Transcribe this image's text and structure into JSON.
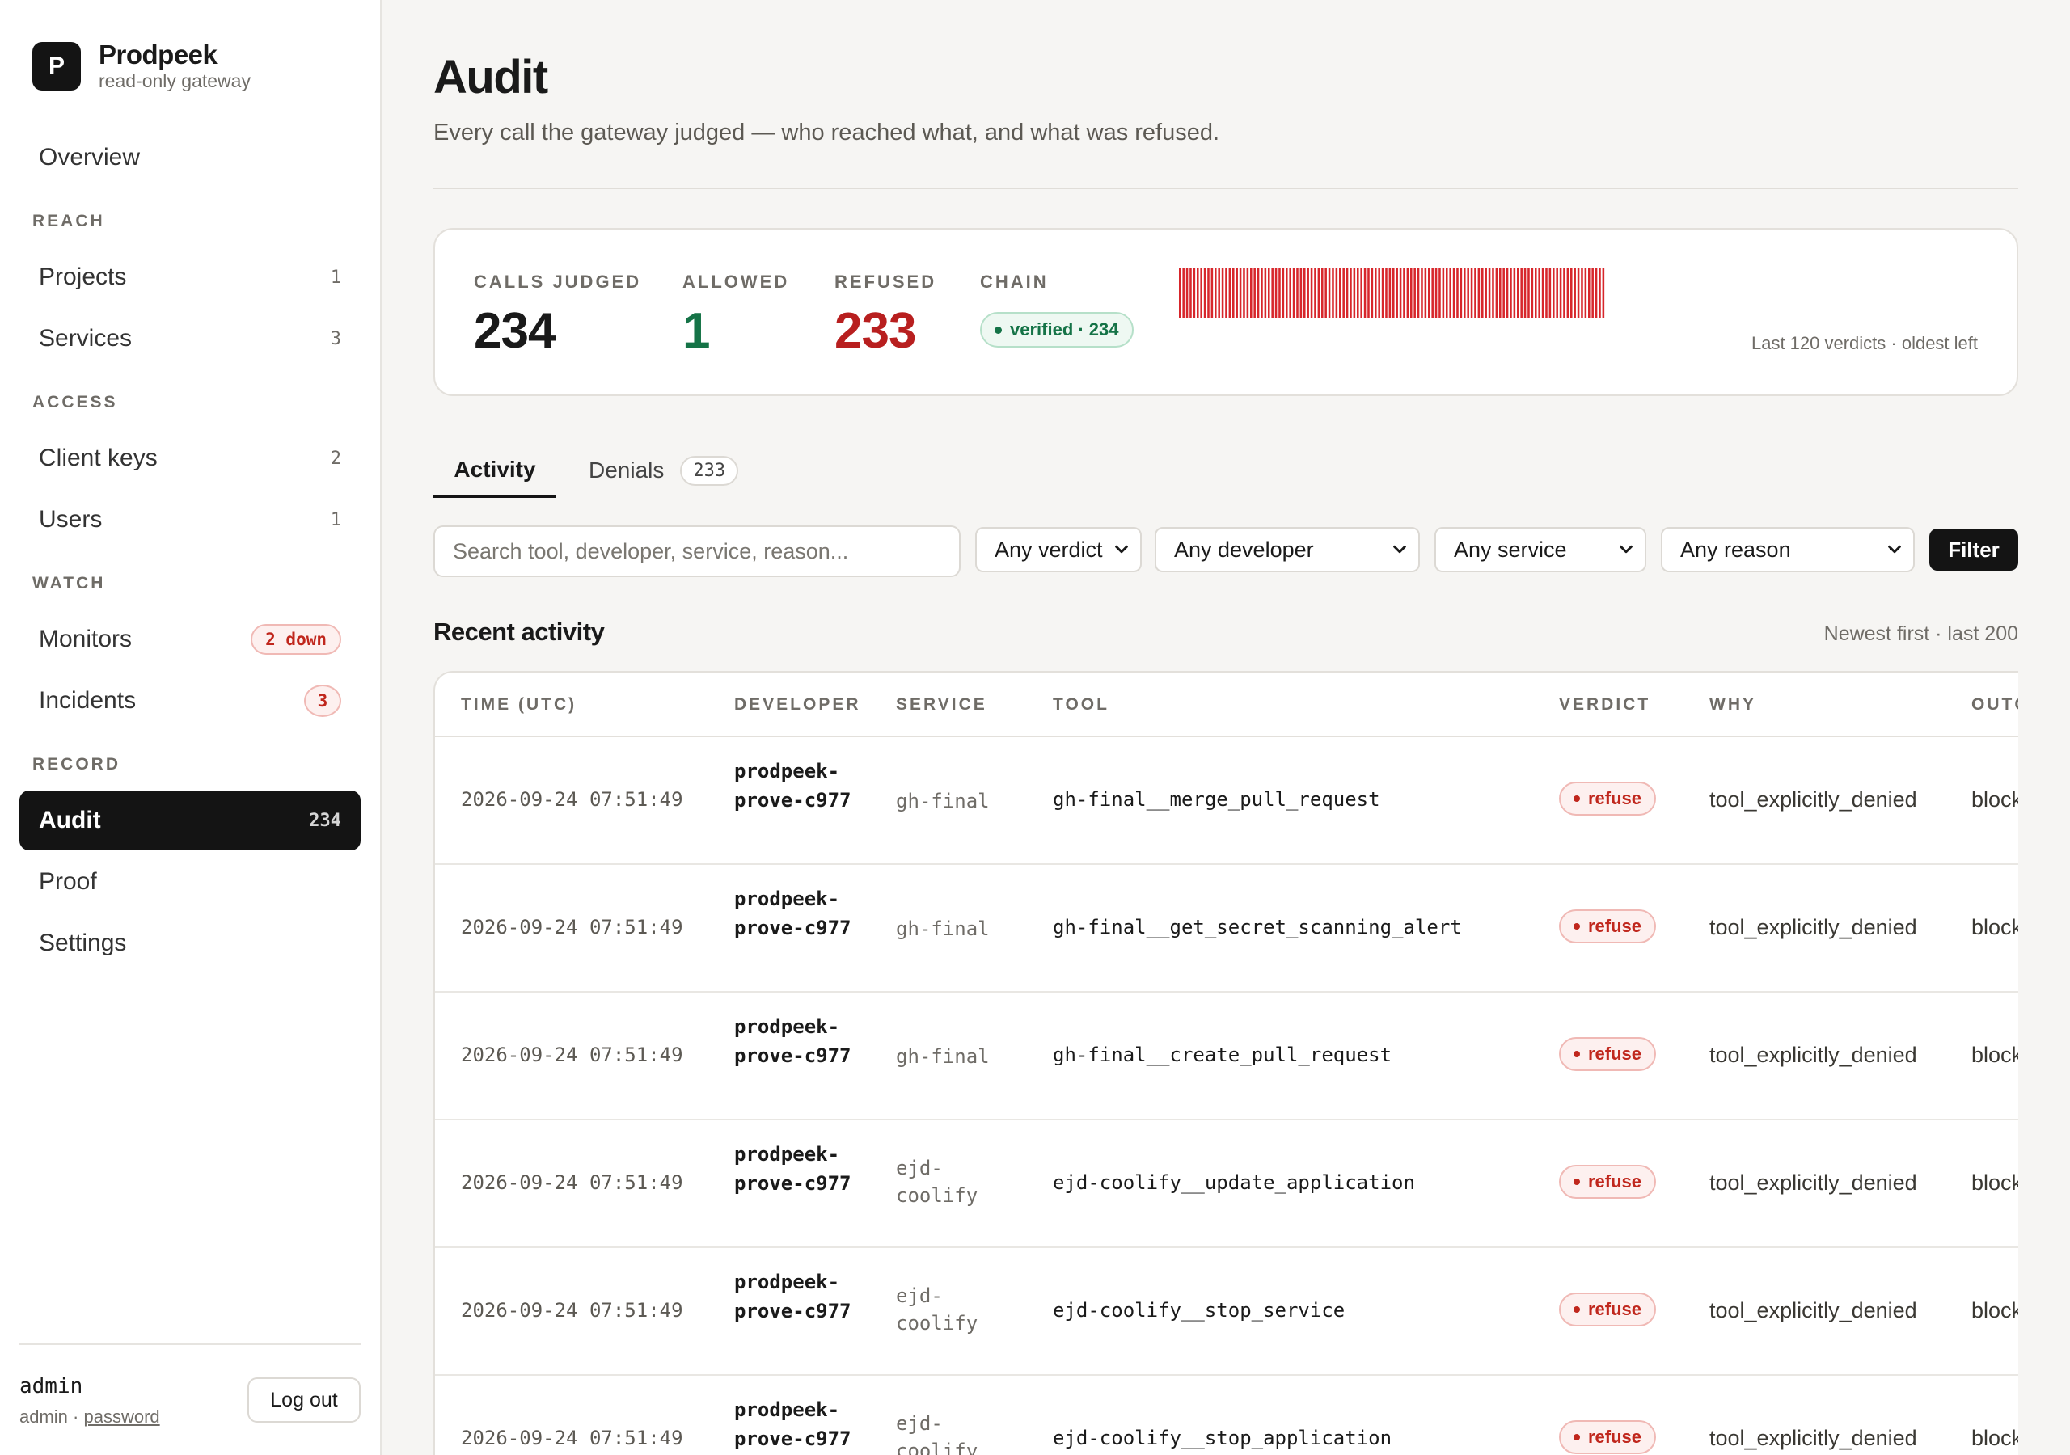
{
  "brand": {
    "logo_letter": "P",
    "name": "Prodpeek",
    "subtitle": "read-only gateway"
  },
  "sidebar": {
    "overview": "Overview",
    "sections": {
      "reach": "REACH",
      "access": "ACCESS",
      "watch": "WATCH",
      "record": "RECORD"
    },
    "items": {
      "projects": {
        "label": "Projects",
        "count": "1"
      },
      "services": {
        "label": "Services",
        "count": "3"
      },
      "client_keys": {
        "label": "Client keys",
        "count": "2"
      },
      "users": {
        "label": "Users",
        "count": "1"
      },
      "monitors": {
        "label": "Monitors",
        "badge": "2 down"
      },
      "incidents": {
        "label": "Incidents",
        "badge": "3"
      },
      "audit": {
        "label": "Audit",
        "count": "234"
      },
      "proof": {
        "label": "Proof"
      },
      "settings": {
        "label": "Settings"
      }
    },
    "user": {
      "name": "admin",
      "role": "admin",
      "separator": " · ",
      "password_link": "password",
      "logout": "Log out"
    }
  },
  "page": {
    "title": "Audit",
    "subtitle": "Every call the gateway judged — who reached what, and what was refused."
  },
  "stats": {
    "calls_label": "CALLS JUDGED",
    "calls_value": "234",
    "allowed_label": "ALLOWED",
    "allowed_value": "1",
    "refused_label": "REFUSED",
    "refused_value": "233",
    "chain_label": "CHAIN",
    "chain_value": "verified · 234",
    "bars_caption": "Last 120 verdicts · oldest left",
    "bars_count": 120,
    "bars_color": "#d7262b"
  },
  "tabs": {
    "activity": "Activity",
    "denials": "Denials",
    "denials_count": "233"
  },
  "filters": {
    "search_placeholder": "Search tool, developer, service, reason...",
    "verdict": "Any verdict",
    "developer": "Any developer",
    "service": "Any service",
    "reason": "Any reason",
    "button": "Filter"
  },
  "recent": {
    "title": "Recent activity",
    "meta": "Newest first · last 200"
  },
  "table": {
    "headers": {
      "time": "TIME (UTC)",
      "developer": "DEVELOPER",
      "service": "SERVICE",
      "tool": "TOOL",
      "verdict": "VERDICT",
      "why": "WHY",
      "outcome": "OUTC"
    },
    "rows": [
      {
        "time": "2026-09-24 07:51:49",
        "developer": "prodpeek-prove-c977",
        "service": "gh-final",
        "tool": "gh-final__merge_pull_request",
        "verdict": "refuse",
        "why": "tool_explicitly_denied",
        "outcome": "block"
      },
      {
        "time": "2026-09-24 07:51:49",
        "developer": "prodpeek-prove-c977",
        "service": "gh-final",
        "tool": "gh-final__get_secret_scanning_alert",
        "verdict": "refuse",
        "why": "tool_explicitly_denied",
        "outcome": "block"
      },
      {
        "time": "2026-09-24 07:51:49",
        "developer": "prodpeek-prove-c977",
        "service": "gh-final",
        "tool": "gh-final__create_pull_request",
        "verdict": "refuse",
        "why": "tool_explicitly_denied",
        "outcome": "block"
      },
      {
        "time": "2026-09-24 07:51:49",
        "developer": "prodpeek-prove-c977",
        "service": "ejd-coolify",
        "tool": "ejd-coolify__update_application",
        "verdict": "refuse",
        "why": "tool_explicitly_denied",
        "outcome": "block"
      },
      {
        "time": "2026-09-24 07:51:49",
        "developer": "prodpeek-prove-c977",
        "service": "ejd-coolify",
        "tool": "ejd-coolify__stop_service",
        "verdict": "refuse",
        "why": "tool_explicitly_denied",
        "outcome": "block"
      },
      {
        "time": "2026-09-24 07:51:49",
        "developer": "prodpeek-prove-c977",
        "service": "ejd-coolify",
        "tool": "ejd-coolify__stop_application",
        "verdict": "refuse",
        "why": "tool_explicitly_denied",
        "outcome": "block"
      }
    ]
  }
}
